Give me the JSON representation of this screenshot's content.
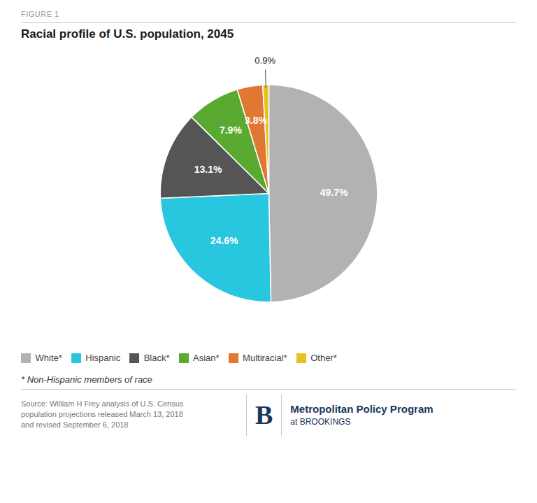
{
  "chart_data": {
    "type": "pie",
    "figure_label": "FIGURE 1",
    "title": "Racial profile of U.S. population, 2045",
    "categories": [
      "White*",
      "Hispanic",
      "Black*",
      "Asian*",
      "Multiracial*",
      "Other*"
    ],
    "values": [
      49.7,
      24.6,
      13.1,
      7.9,
      3.8,
      0.9
    ],
    "value_labels": [
      "49.7%",
      "24.6%",
      "13.1%",
      "7.9%",
      "3.8%",
      "0.9%"
    ],
    "colors": [
      "#b2b2b2",
      "#29c6e0",
      "#555555",
      "#5aaa32",
      "#e07833",
      "#e8c020"
    ],
    "data_labels": true,
    "legend": "bottom",
    "note": "* Non-Hispanic members of race",
    "source": "Source: William H Frey analysis of U.S. Census\npopulation projections released March 13, 2018\nand revised September 6, 2018",
    "branding": [
      "B",
      "Metropolitan Policy Program",
      "at BROOKINGS"
    ]
  }
}
